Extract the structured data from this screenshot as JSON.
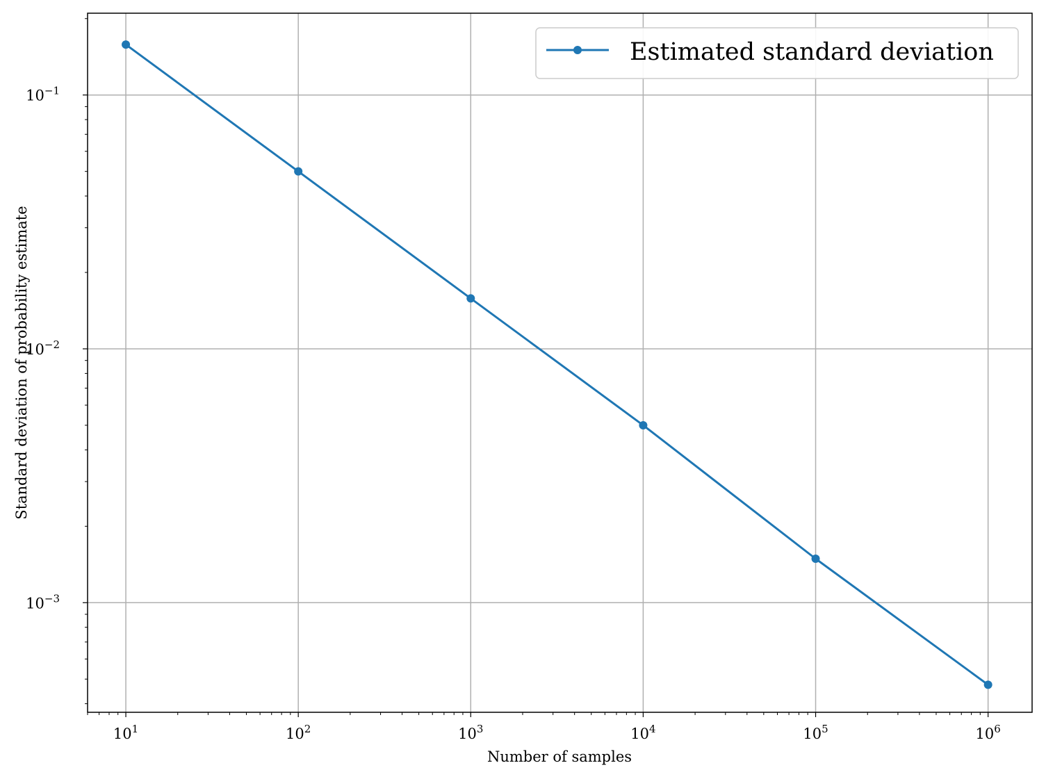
{
  "chart_data": {
    "type": "line",
    "title": "",
    "xlabel": "Number of samples",
    "ylabel": "Standard deviation of probability estimate",
    "xscale": "log",
    "yscale": "log",
    "xlim": [
      6,
      1800000
    ],
    "ylim": [
      0.00037,
      0.21
    ],
    "grid": true,
    "legend_position": "top-right",
    "xticks": [
      {
        "value": 10,
        "base": "10",
        "exp": "1"
      },
      {
        "value": 100,
        "base": "10",
        "exp": "2"
      },
      {
        "value": 1000,
        "base": "10",
        "exp": "3"
      },
      {
        "value": 10000,
        "base": "10",
        "exp": "4"
      },
      {
        "value": 100000,
        "base": "10",
        "exp": "5"
      },
      {
        "value": 1000000,
        "base": "10",
        "exp": "6"
      }
    ],
    "yticks": [
      {
        "value": 0.1,
        "base": "10",
        "exp": "−1"
      },
      {
        "value": 0.01,
        "base": "10",
        "exp": "−2"
      },
      {
        "value": 0.001,
        "base": "10",
        "exp": "−3"
      }
    ],
    "series": [
      {
        "name": "Estimated standard deviation",
        "color": "#1f77b4",
        "marker": "circle",
        "x": [
          10,
          100,
          1000,
          10000,
          100000,
          1000000
        ],
        "y": [
          0.158,
          0.05,
          0.0158,
          0.005,
          0.00149,
          0.000475
        ]
      }
    ]
  }
}
